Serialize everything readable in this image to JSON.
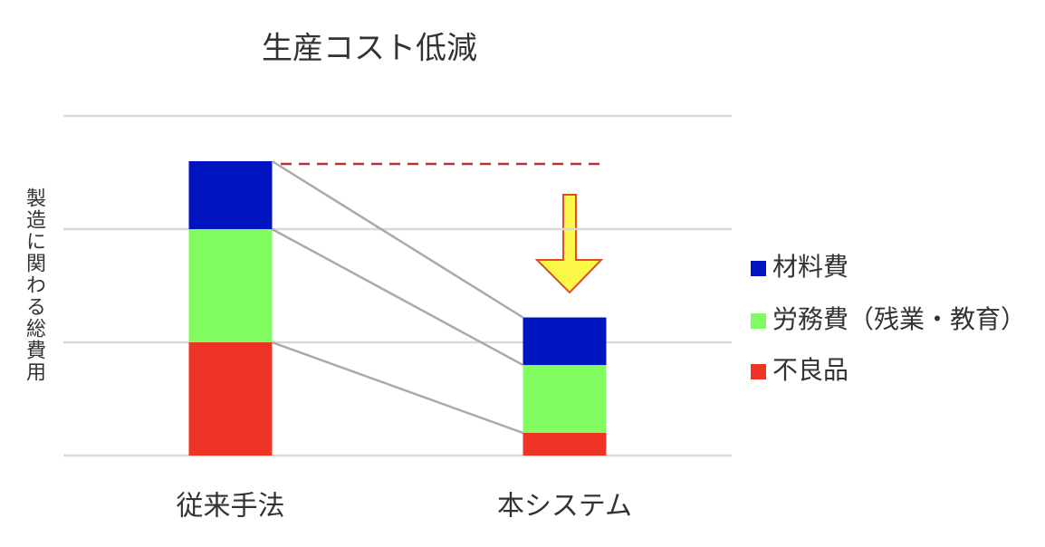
{
  "chart_data": {
    "type": "bar",
    "stacked": true,
    "title": "生産コスト低減",
    "y_label": "製造に関わる総費用",
    "categories": [
      "従来手法",
      "本システム"
    ],
    "series": [
      {
        "name": "不良品",
        "color": "#ee3424",
        "values": [
          1.0,
          0.2
        ]
      },
      {
        "name": "労務費（残業・教育）",
        "color": "#80fc60",
        "values": [
          1.0,
          0.6
        ]
      },
      {
        "name": "材料費",
        "color": "#0015c0",
        "values": [
          0.6,
          0.42
        ]
      }
    ],
    "ylim": [
      0,
      3
    ],
    "yticks": [
      0,
      1,
      2,
      3
    ],
    "grid": true,
    "legend": "right"
  }
}
